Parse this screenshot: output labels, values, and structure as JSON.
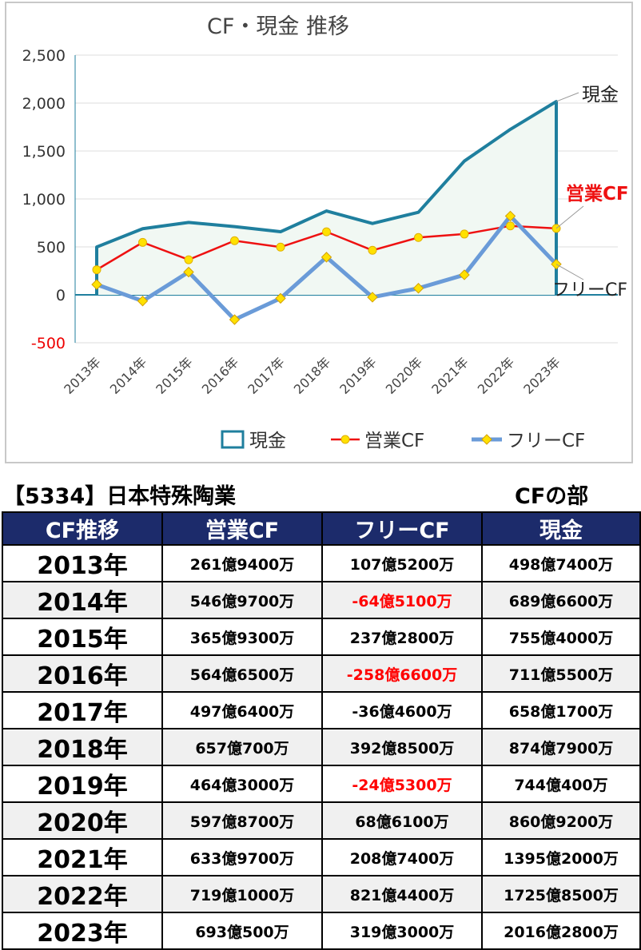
{
  "chart_data": {
    "type": "line",
    "title": "CF・現金 推移",
    "categories": [
      "2013年",
      "2014年",
      "2015年",
      "2016年",
      "2017年",
      "2018年",
      "2019年",
      "2020年",
      "2021年",
      "2022年",
      "2023年"
    ],
    "ylim": [
      -500,
      2500
    ],
    "yticks": [
      "-500",
      "0",
      "500",
      "1,000",
      "1,500",
      "2,000",
      "2,500"
    ],
    "ytick_values": [
      -500,
      0,
      500,
      1000,
      1500,
      2000,
      2500
    ],
    "series": [
      {
        "name": "現金",
        "color": "#1f7f9e",
        "style": "area",
        "label": "現金",
        "values": [
          498.74,
          689.66,
          755.4,
          711.55,
          658.17,
          874.79,
          744.04,
          860.92,
          1395.2,
          1725.85,
          2016.28
        ]
      },
      {
        "name": "営業CF",
        "color": "#ee1111",
        "style": "line-marker",
        "label": "営業CF",
        "values": [
          261.94,
          546.97,
          365.93,
          564.65,
          497.64,
          657.07,
          464.3,
          597.87,
          633.97,
          719.1,
          693.05
        ]
      },
      {
        "name": "フリーCF",
        "color": "#6a9bd8",
        "style": "line-diamond",
        "label": "フリーCF",
        "values": [
          107.52,
          -64.51,
          237.28,
          -258.66,
          -36.46,
          392.85,
          -24.53,
          68.61,
          208.74,
          821.44,
          319.3
        ]
      }
    ],
    "legend_position": "bottom",
    "grid": true
  },
  "table": {
    "title": "【5334】日本特殊陶業",
    "section": "CFの部",
    "headers": [
      "CF推移",
      "営業CF",
      "フリーCF",
      "現金"
    ],
    "rows": [
      {
        "year": "2013年",
        "op": "261億9400万",
        "free": "107億5200万",
        "cash": "498億7400万",
        "free_neg": false
      },
      {
        "year": "2014年",
        "op": "546億9700万",
        "free": "-64億5100万",
        "cash": "689億6600万",
        "free_neg": true
      },
      {
        "year": "2015年",
        "op": "365億9300万",
        "free": "237億2800万",
        "cash": "755億4000万",
        "free_neg": false
      },
      {
        "year": "2016年",
        "op": "564億6500万",
        "free": "-258億6600万",
        "cash": "711億5500万",
        "free_neg": true
      },
      {
        "year": "2017年",
        "op": "497億6400万",
        "free": "-36億4600万",
        "cash": "658億1700万",
        "free_neg": false
      },
      {
        "year": "2018年",
        "op": "657億700万",
        "free": "392億8500万",
        "cash": "874億7900万",
        "free_neg": false
      },
      {
        "year": "2019年",
        "op": "464億3000万",
        "free": "-24億5300万",
        "cash": "744億400万",
        "free_neg": true
      },
      {
        "year": "2020年",
        "op": "597億8700万",
        "free": "68億6100万",
        "cash": "860億9200万",
        "free_neg": false
      },
      {
        "year": "2021年",
        "op": "633億9700万",
        "free": "208億7400万",
        "cash": "1395億2000万",
        "free_neg": false
      },
      {
        "year": "2022年",
        "op": "719億1000万",
        "free": "821億4400万",
        "cash": "1725億8500万",
        "free_neg": false
      },
      {
        "year": "2023年",
        "op": "693億500万",
        "free": "319億3000万",
        "cash": "2016億2800万",
        "free_neg": false
      }
    ]
  }
}
